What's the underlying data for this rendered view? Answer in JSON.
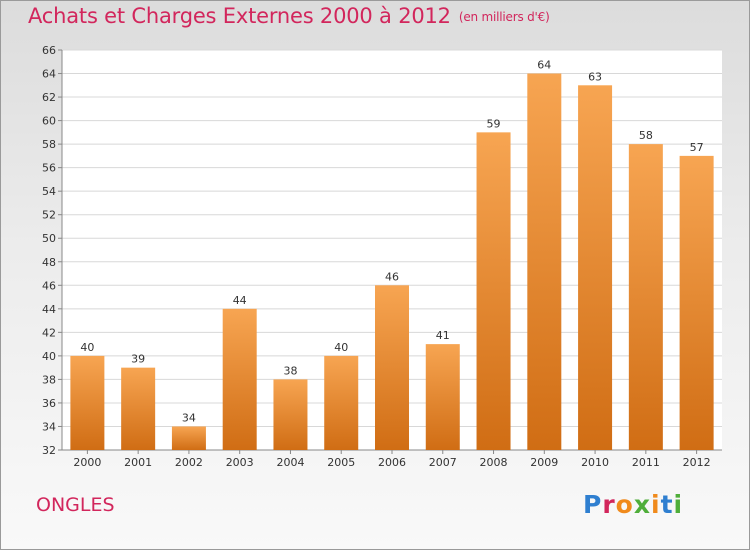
{
  "header": {
    "title": "Achats et Charges Externes 2000 à 2012",
    "unit": "(en milliers d'€)"
  },
  "footer": {
    "commune": "ONGLES",
    "logo_text": "Proxiti"
  },
  "colors": {
    "title": "#d2265c",
    "bar_top": "#f7a552",
    "bar_bottom": "#d06d14",
    "grid": "#d8d8d8"
  },
  "chart_data": {
    "type": "bar",
    "title": "Achats et Charges Externes 2000 à 2012",
    "subtitle": "(en milliers d'€)",
    "xlabel": "",
    "ylabel": "",
    "categories": [
      "2000",
      "2001",
      "2002",
      "2003",
      "2004",
      "2005",
      "2006",
      "2007",
      "2008",
      "2009",
      "2010",
      "2011",
      "2012"
    ],
    "values": [
      40,
      39,
      34,
      44,
      38,
      40,
      46,
      41,
      59,
      64,
      63,
      58,
      57
    ],
    "ylim": [
      32,
      66
    ],
    "yticks": [
      32,
      34,
      36,
      38,
      40,
      42,
      44,
      46,
      48,
      50,
      52,
      54,
      56,
      58,
      60,
      62,
      64,
      66
    ],
    "grid": true,
    "data_labels": true
  }
}
